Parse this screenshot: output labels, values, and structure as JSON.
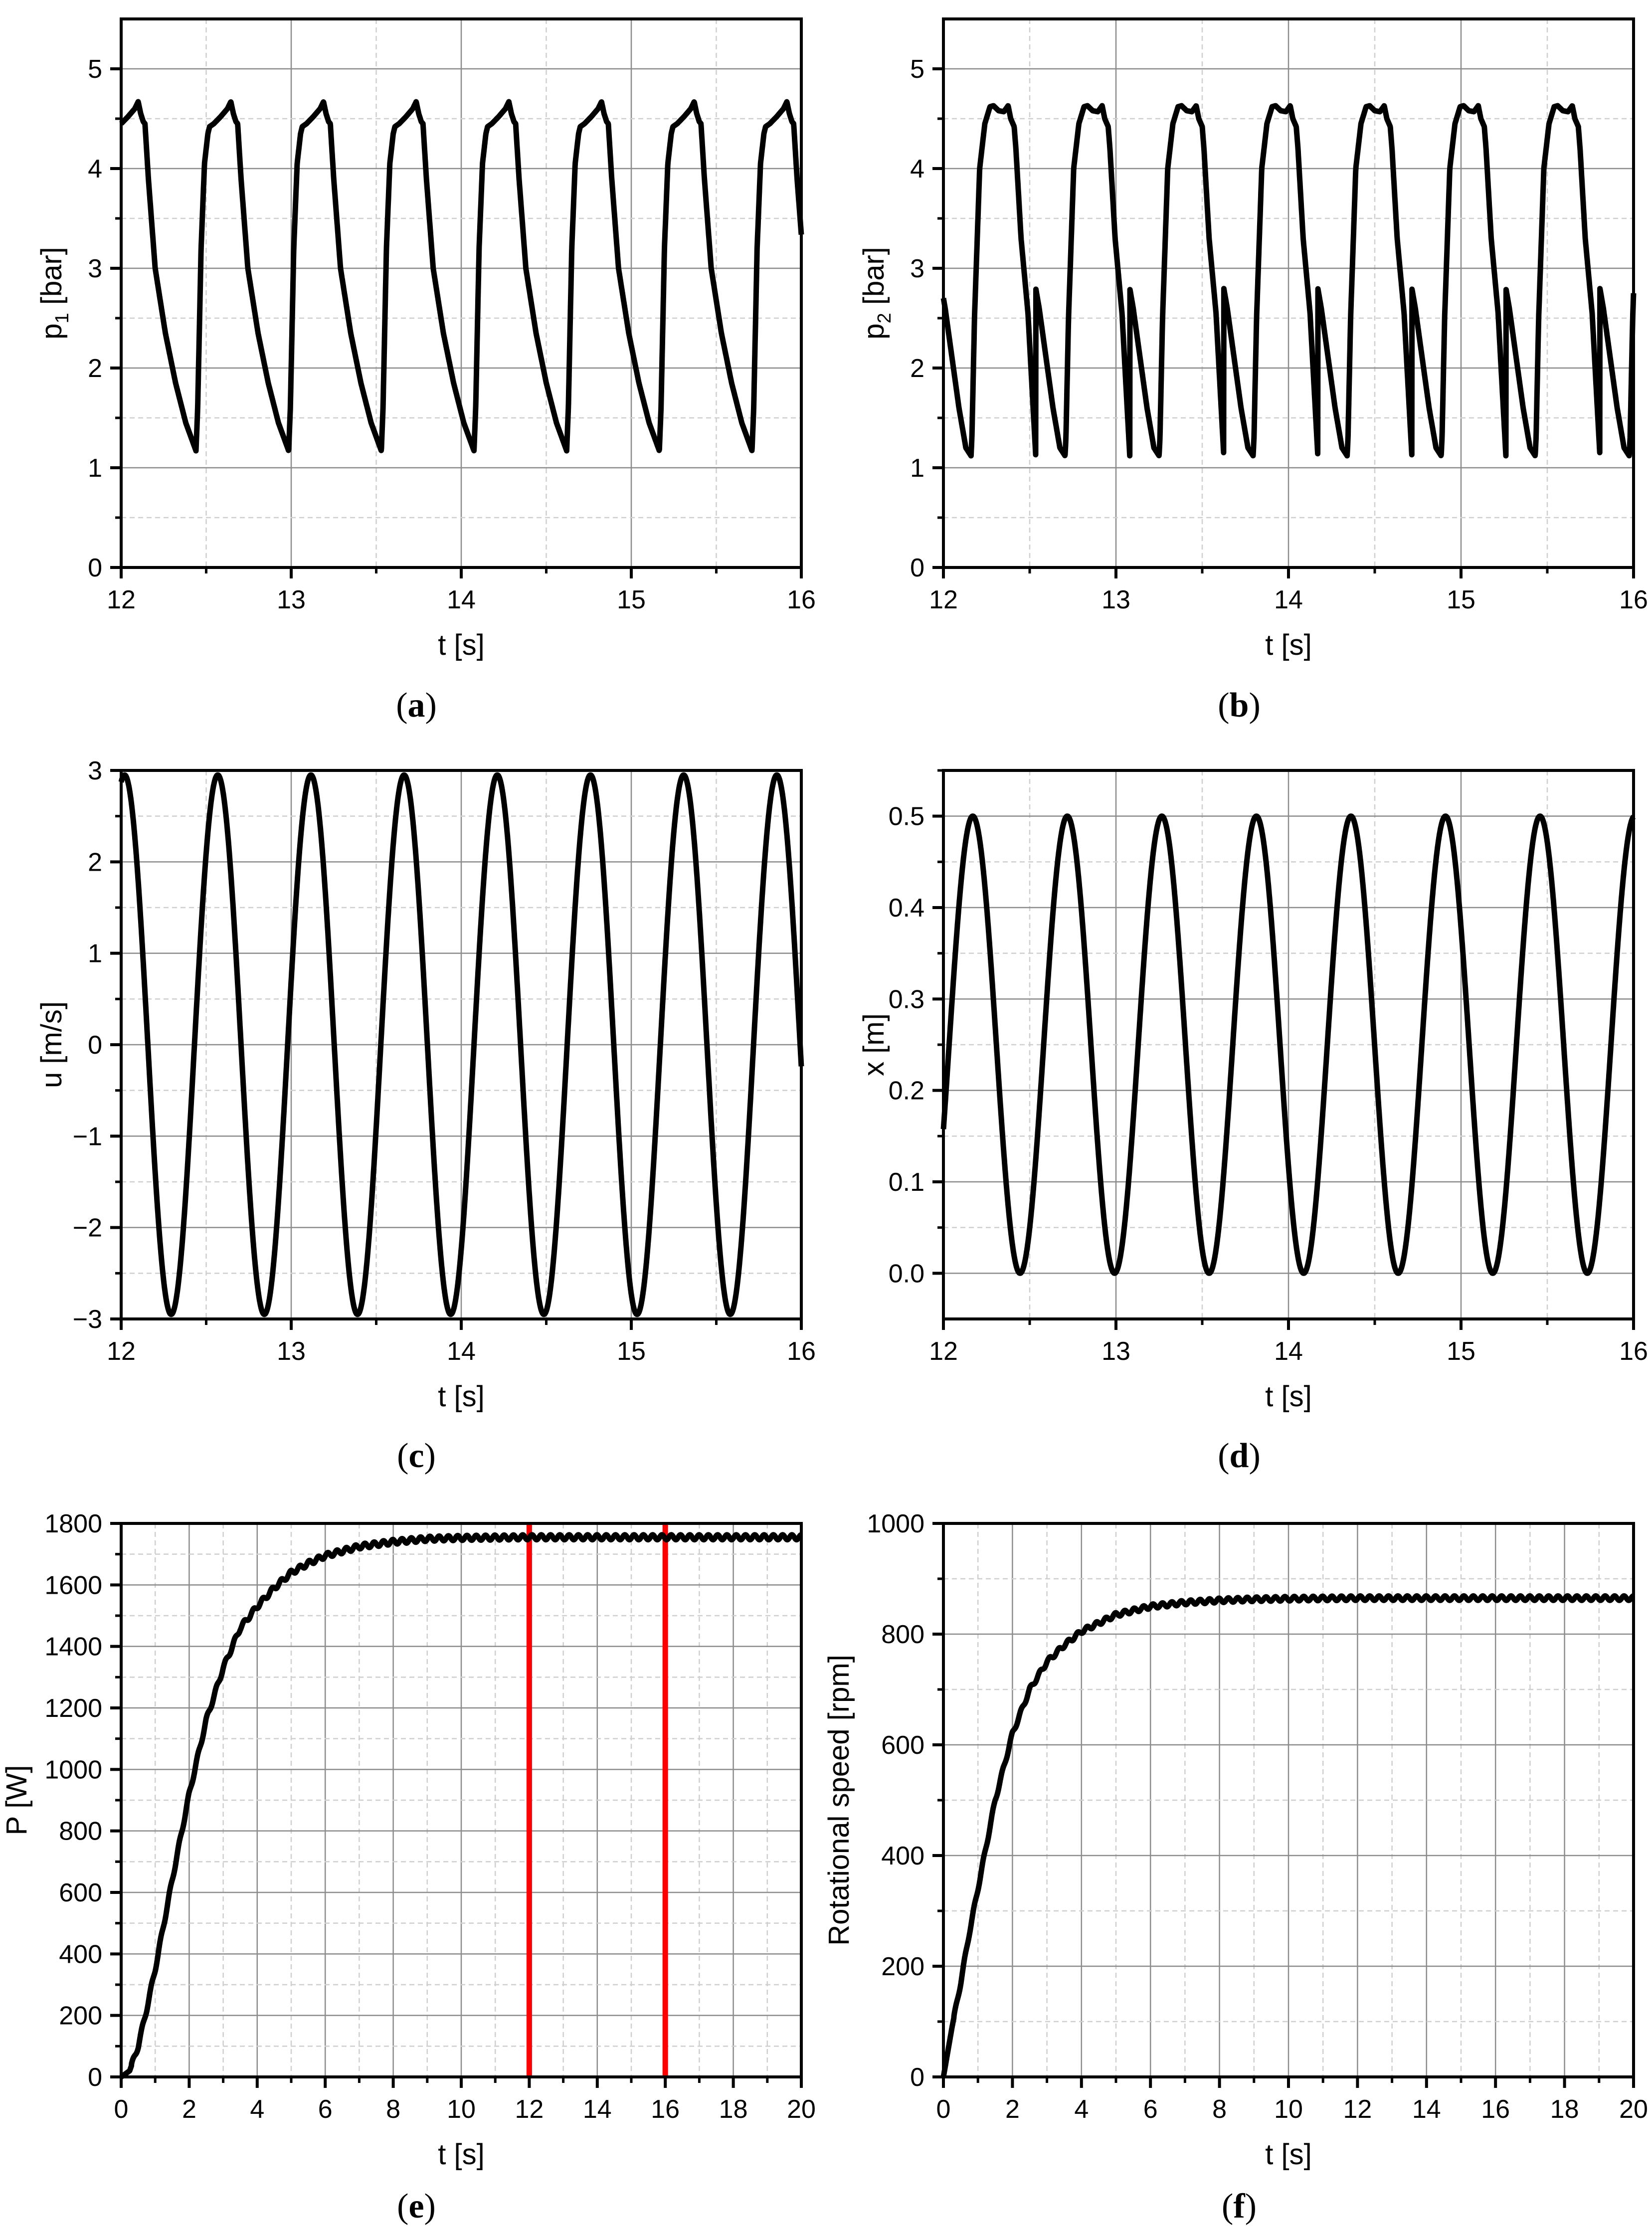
{
  "figure": {
    "panels": [
      {
        "id": "a",
        "label": "(a)",
        "letter": "a"
      },
      {
        "id": "b",
        "label": "(b)",
        "letter": "b"
      },
      {
        "id": "c",
        "label": "(c)",
        "letter": "c"
      },
      {
        "id": "d",
        "label": "(d)",
        "letter": "d"
      },
      {
        "id": "e",
        "label": "(e)",
        "letter": "e"
      },
      {
        "id": "f",
        "label": "(f)",
        "letter": "f"
      }
    ]
  },
  "colors": {
    "curve": "#000000",
    "axis": "#000000",
    "major_grid": "#8c8c8c",
    "minor_grid": "#cfcfcf",
    "marker": "#ff0000"
  },
  "chart_data": [
    {
      "id": "a",
      "type": "line",
      "title": "",
      "xlabel": "t [s]",
      "ylabel": "p1 [bar]",
      "ylabel_main": "p",
      "ylabel_sub": "1",
      "ylabel_unit": " [bar]",
      "xlim": [
        12,
        16
      ],
      "ylim": [
        0,
        5.5
      ],
      "xticks": [
        12,
        13,
        14,
        15,
        16
      ],
      "yticks": [
        0,
        1,
        2,
        3,
        4,
        5
      ],
      "xminor": 0.5,
      "yminor": 0.5,
      "grid": true,
      "period": 0.545,
      "phase": 12.0,
      "series": [
        {
          "name": "p1",
          "shape_points_t": [
            0.0,
            0.04,
            0.08,
            0.1,
            0.115,
            0.13,
            0.14,
            0.16,
            0.2,
            0.26,
            0.32,
            0.38,
            0.44,
            0.45,
            0.47,
            0.49,
            0.51,
            0.52,
            0.545
          ],
          "shape_points_y": [
            4.45,
            4.52,
            4.6,
            4.67,
            4.55,
            4.47,
            4.45,
            3.9,
            3.0,
            2.35,
            1.85,
            1.45,
            1.17,
            1.6,
            3.2,
            4.05,
            4.35,
            4.42,
            4.45
          ]
        }
      ]
    },
    {
      "id": "b",
      "type": "line",
      "title": "",
      "xlabel": "t [s]",
      "ylabel": "p2 [bar]",
      "ylabel_main": "p",
      "ylabel_sub": "2",
      "ylabel_unit": " [bar]",
      "xlim": [
        12,
        16
      ],
      "ylim": [
        0,
        5.5
      ],
      "xticks": [
        12,
        13,
        14,
        15,
        16
      ],
      "yticks": [
        0,
        1,
        2,
        3,
        4,
        5
      ],
      "xminor": 0.5,
      "yminor": 0.5,
      "grid": true,
      "period": 0.545,
      "phase": 11.99,
      "series": [
        {
          "name": "p2",
          "shape_points_t": [
            0.0,
            0.02,
            0.06,
            0.1,
            0.14,
            0.17,
            0.175,
            0.19,
            0.22,
            0.25,
            0.28,
            0.3,
            0.33,
            0.36,
            0.385,
            0.4,
            0.42,
            0.43,
            0.46,
            0.5,
            0.545
          ],
          "shape_points_y": [
            2.8,
            2.6,
            2.1,
            1.6,
            1.2,
            1.12,
            1.3,
            2.5,
            4.0,
            4.45,
            4.62,
            4.63,
            4.58,
            4.57,
            4.63,
            4.5,
            4.42,
            4.2,
            3.3,
            2.55,
            1.12
          ]
        }
      ]
    },
    {
      "id": "c",
      "type": "line",
      "title": "",
      "xlabel": "t [s]",
      "ylabel": "u [m/s]",
      "xlim": [
        12,
        16
      ],
      "ylim": [
        -3,
        3
      ],
      "xticks": [
        12,
        13,
        14,
        15,
        16
      ],
      "yticks": [
        -3,
        -2,
        -1,
        0,
        1,
        2,
        3
      ],
      "ytick_labels": [
        "−3",
        "−2",
        "−1",
        "0",
        "1",
        "2",
        "3"
      ],
      "xminor": 0.5,
      "yminor": 0.5,
      "grid": true,
      "series": [
        {
          "name": "u",
          "func": "sin",
          "amplitude": 2.95,
          "offset": 0,
          "period": 0.548,
          "peak_t": 12.02
        }
      ]
    },
    {
      "id": "d",
      "type": "line",
      "title": "",
      "xlabel": "t [s]",
      "ylabel": "x [m]",
      "xlim": [
        12,
        16
      ],
      "ylim": [
        -0.05,
        0.55
      ],
      "xticks": [
        12,
        13,
        14,
        15,
        16
      ],
      "yticks": [
        0.0,
        0.1,
        0.2,
        0.3,
        0.4,
        0.5
      ],
      "ytick_labels": [
        "0.0",
        "0.1",
        "0.2",
        "0.3",
        "0.4",
        "0.5"
      ],
      "xminor": 0.5,
      "yminor": 0.05,
      "grid": true,
      "series": [
        {
          "name": "x",
          "func": "sin",
          "amplitude": 0.25,
          "offset": 0.25,
          "period": 0.548,
          "peak_t": 12.17
        }
      ]
    },
    {
      "id": "e",
      "type": "line",
      "title": "",
      "xlabel": "t [s]",
      "ylabel": "P [W]",
      "xlim": [
        0,
        20
      ],
      "ylim": [
        0,
        1800
      ],
      "xticks": [
        0,
        2,
        4,
        6,
        8,
        10,
        12,
        14,
        16,
        18,
        20
      ],
      "yticks": [
        0,
        200,
        400,
        600,
        800,
        1000,
        1200,
        1400,
        1600,
        1800
      ],
      "xminor": 1,
      "yminor": 100,
      "grid": true,
      "vlines": [
        12,
        16
      ],
      "series": [
        {
          "name": "P",
          "x": [
            0,
            0.25,
            0.5,
            0.75,
            1,
            1.5,
            2,
            2.5,
            3,
            3.5,
            4,
            4.5,
            5,
            5.5,
            6,
            7,
            8,
            9,
            10,
            12,
            14,
            16,
            18,
            20
          ],
          "y": [
            0,
            20,
            100,
            220,
            350,
            640,
            920,
            1160,
            1330,
            1460,
            1530,
            1590,
            1640,
            1670,
            1695,
            1725,
            1740,
            1750,
            1753,
            1755,
            1755,
            1755,
            1755,
            1755
          ],
          "ripple": 8,
          "ripple_period": 0.273
        }
      ]
    },
    {
      "id": "f",
      "type": "line",
      "title": "",
      "xlabel": "t [s]",
      "ylabel": "Rotational speed [rpm]",
      "xlim": [
        0,
        20
      ],
      "ylim": [
        0,
        1000
      ],
      "xticks": [
        0,
        2,
        4,
        6,
        8,
        10,
        12,
        14,
        16,
        18,
        20
      ],
      "yticks": [
        0,
        200,
        400,
        600,
        800,
        1000
      ],
      "xminor": 1,
      "yminor": 100,
      "grid": true,
      "series": [
        {
          "name": "Rotational speed",
          "x": [
            0,
            0.25,
            0.5,
            0.75,
            1,
            1.5,
            2,
            2.5,
            3,
            3.5,
            4,
            4.5,
            5,
            6,
            7,
            8,
            9,
            10,
            12,
            14,
            16,
            18,
            20
          ],
          "y": [
            0,
            90,
            170,
            260,
            340,
            500,
            620,
            700,
            750,
            780,
            805,
            820,
            835,
            850,
            857,
            861,
            863,
            864,
            865,
            865,
            865,
            865,
            865
          ],
          "ripple": 4,
          "ripple_period": 0.273
        }
      ]
    }
  ]
}
